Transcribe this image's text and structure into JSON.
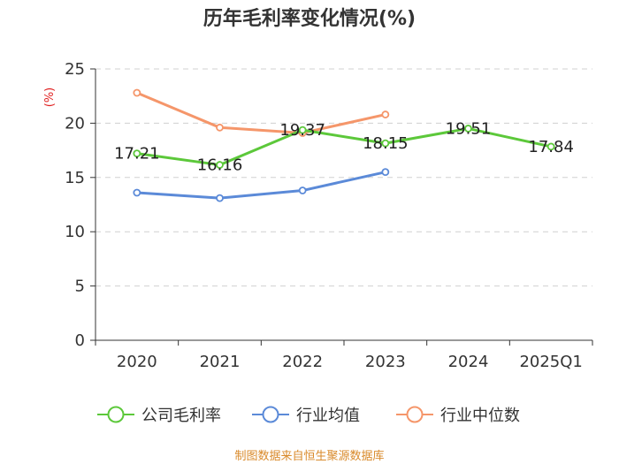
{
  "chart_data": {
    "type": "line",
    "title": "历年毛利率变化情况(%)",
    "ylabel": "(%)",
    "xlabel": "",
    "categories": [
      "2020",
      "2021",
      "2022",
      "2023",
      "2024",
      "2025Q1"
    ],
    "ylim": [
      0,
      25
    ],
    "yticks": [
      0,
      5,
      10,
      15,
      20,
      25
    ],
    "grid": true,
    "legend_position": "bottom",
    "series": [
      {
        "name": "公司毛利率",
        "color": "#5cc83a",
        "values": [
          17.21,
          16.16,
          19.37,
          18.15,
          19.51,
          17.84
        ],
        "labels": [
          "17.21",
          "16.16",
          "19.37",
          "18.15",
          "19.51",
          "17.84"
        ]
      },
      {
        "name": "行业均值",
        "color": "#5b8ad8",
        "values": [
          13.6,
          13.1,
          13.8,
          15.5,
          null,
          null
        ]
      },
      {
        "name": "行业中位数",
        "color": "#f5966a",
        "values": [
          22.8,
          19.6,
          19.1,
          20.8,
          null,
          null
        ]
      }
    ],
    "source": "制图数据来自恒生聚源数据库"
  }
}
